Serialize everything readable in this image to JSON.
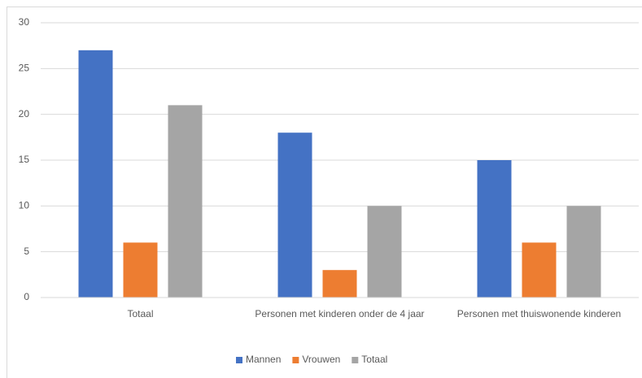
{
  "chart_data": {
    "type": "bar",
    "categories": [
      "Totaal",
      "Personen met kinderen onder de 4 jaar",
      "Personen met thuiswonende kinderen"
    ],
    "series": [
      {
        "name": "Mannen",
        "color": "#4472c4",
        "values": [
          27,
          18,
          15
        ]
      },
      {
        "name": "Vrouwen",
        "color": "#ed7d31",
        "values": [
          6,
          3,
          6
        ]
      },
      {
        "name": "Totaal",
        "color": "#a5a5a5",
        "values": [
          21,
          10,
          10
        ]
      }
    ],
    "ylim": [
      0,
      30
    ],
    "yticks": [
      0,
      5,
      10,
      15,
      20,
      25,
      30
    ],
    "grid": true,
    "legend": "bottom"
  }
}
